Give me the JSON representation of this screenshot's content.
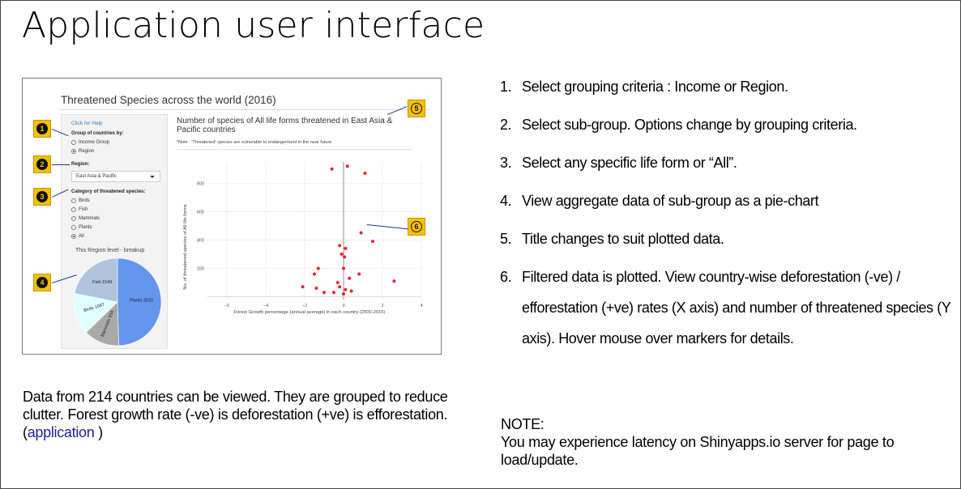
{
  "slide": {
    "title": "Application user interface"
  },
  "app": {
    "title": "Threatened Species across the world (2016)",
    "help_link": "Click for Help",
    "group_label": "Group of countries by:",
    "group_options": [
      "Income Group",
      "Region"
    ],
    "group_selected": "Region",
    "region_label": "Region:",
    "region_value": "East Asia & Pacific",
    "category_label": "Category of threatened species:",
    "category_options": [
      "Birds",
      "Fish",
      "Mammals",
      "Plants",
      "All"
    ],
    "category_selected": "All",
    "pie_title": "This Region level - breakup",
    "plot_title": "Number of species of All life forms threatened in East Asia & Pacific countries",
    "plot_note": "*Note : 'Threatened' species are vulnerable to endangerment in the near future",
    "markers": [
      "1",
      "2",
      "3",
      "4",
      "5",
      "6"
    ]
  },
  "chart_data": [
    {
      "type": "pie",
      "title": "This Region level - breakup",
      "slices": [
        {
          "label": "Plants 3515",
          "value": 3515,
          "color": "#6495ed"
        },
        {
          "label": "Mammals 934",
          "value": 934,
          "color": "#a9a9a9"
        },
        {
          "label": "Birds 1097",
          "value": 1097,
          "color": "#e0ffff"
        },
        {
          "label": "Fish 1549",
          "value": 1549,
          "color": "#b0c4de"
        }
      ]
    },
    {
      "type": "scatter",
      "xlabel": "Forest Growth percentage (annual average) in each country (2000-2015)",
      "ylabel": "No. of threatened species of All life forms",
      "xlim": [
        -7,
        4
      ],
      "ylim": [
        -20,
        950
      ],
      "xticks": [
        "−6",
        "−4",
        "−2",
        "0",
        "2",
        "4"
      ],
      "yticks": [
        "200",
        "400",
        "600",
        "800"
      ],
      "point_color": "#e8262b",
      "points": [
        {
          "x": -0.6,
          "y": 900
        },
        {
          "x": 0.2,
          "y": 920
        },
        {
          "x": 1.1,
          "y": 870
        },
        {
          "x": 0.9,
          "y": 450
        },
        {
          "x": 1.5,
          "y": 390
        },
        {
          "x": -0.2,
          "y": 360
        },
        {
          "x": 0.1,
          "y": 340
        },
        {
          "x": -0.1,
          "y": 300
        },
        {
          "x": 0.05,
          "y": 280
        },
        {
          "x": -1.3,
          "y": 200
        },
        {
          "x": -1.5,
          "y": 160
        },
        {
          "x": 0.8,
          "y": 160
        },
        {
          "x": 0.0,
          "y": 200
        },
        {
          "x": 0.3,
          "y": 130
        },
        {
          "x": 2.6,
          "y": 110
        },
        {
          "x": -2.1,
          "y": 70
        },
        {
          "x": -1.4,
          "y": 60
        },
        {
          "x": -0.3,
          "y": 100
        },
        {
          "x": -0.2,
          "y": 70
        },
        {
          "x": 0.1,
          "y": 50
        },
        {
          "x": 0.4,
          "y": 40
        },
        {
          "x": -0.5,
          "y": 30
        },
        {
          "x": -1.0,
          "y": 30
        },
        {
          "x": 0.0,
          "y": 20
        }
      ]
    }
  ],
  "steps": [
    {
      "num": "1.",
      "text": "Select grouping criteria : Income or Region."
    },
    {
      "num": "2.",
      "text": "Select sub-group. Options change by grouping criteria."
    },
    {
      "num": "3.",
      "text": "Select any specific life form or “All”."
    },
    {
      "num": "4.",
      "text": "View aggregate data of sub-group as a pie-chart"
    },
    {
      "num": "5.",
      "text": "Title changes to suit plotted data."
    },
    {
      "num": "6.",
      "text": "Filtered data is plotted. View country-wise deforestation (-ve) / efforestation (+ve) rates (X axis) and number of threatened species (Y axis). Hover mouse over markers for details."
    }
  ],
  "paragraph": {
    "text": "Data from 214 countries can be viewed. They are grouped to reduce clutter. Forest growth rate (-ve) is deforestation (+ve) is efforestation. (",
    "link": "application",
    "suffix": " )"
  },
  "note": {
    "label": "NOTE:",
    "text": "You may experience latency on Shinyapps.io server for page to load/update."
  }
}
